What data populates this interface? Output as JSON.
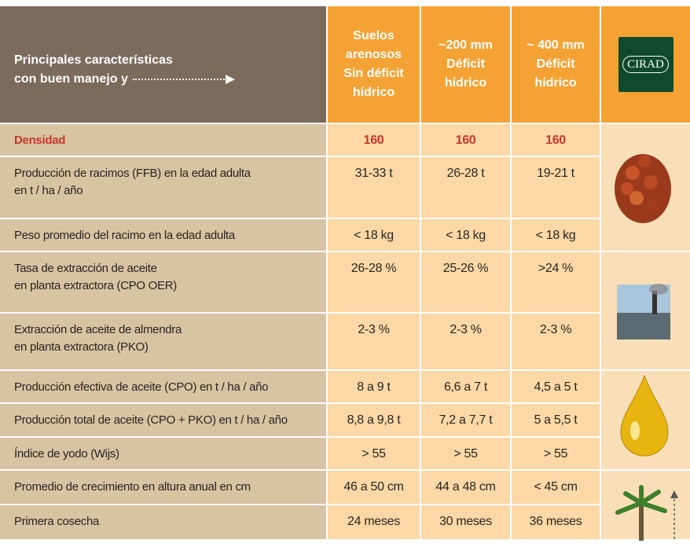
{
  "header": {
    "title_lines": [
      "Principales características",
      "con buen manejo y"
    ],
    "columns": [
      [
        "Suelos",
        "arenosos",
        "Sin déficit",
        "hídrico"
      ],
      [
        "~200 mm",
        "Déficit",
        "hídrico"
      ],
      [
        "~ 400 mm",
        "Déficit",
        "hídrico"
      ]
    ],
    "logo": "CIRAD"
  },
  "table": {
    "rows": [
      {
        "label_lines": [
          "Densidad"
        ],
        "values": [
          "160",
          "160",
          "160"
        ]
      },
      {
        "label_lines": [
          "Producción de racimos (FFB) en la edad adulta",
          "en t / ha / año"
        ],
        "values": [
          "31-33 t",
          "26-28 t",
          "19-21 t"
        ]
      },
      {
        "label_lines": [
          "Peso promedio del racimo en la edad adulta"
        ],
        "values": [
          "< 18 kg",
          "< 18 kg",
          "< 18 kg"
        ]
      },
      {
        "label_lines": [
          "Tasa de extracción de aceite",
          "en planta extractora (CPO OER)"
        ],
        "values": [
          "26-28 %",
          "25-26 %",
          ">24 %"
        ]
      },
      {
        "label_lines": [
          "Extracción de aceite de almendra",
          "en planta extractora (PKO)"
        ],
        "values": [
          "2-3 %",
          "2-3 %",
          "2-3 %"
        ]
      },
      {
        "label_lines": [
          "Producción efectiva de aceite (CPO) en t / ha / año"
        ],
        "values": [
          "8 a 9 t",
          "6,6 a 7 t",
          "4,5 a 5 t"
        ]
      },
      {
        "label_lines": [
          "Producción total de aceite (CPO + PKO) en t / ha / año"
        ],
        "values": [
          "8,8 a 9,8 t",
          "7,2 a 7,7 t",
          "5 a 5,5 t"
        ]
      },
      {
        "label_lines": [
          "Índice de yodo (Wijs)"
        ],
        "values": [
          "> 55",
          "> 55",
          "> 55"
        ]
      },
      {
        "label_lines": [
          "Promedio de crecimiento en altura anual en cm"
        ],
        "values": [
          "46 a 50 cm",
          "44 a 48 cm",
          "< 45 cm"
        ]
      },
      {
        "label_lines": [
          "Primera cosecha"
        ],
        "values": [
          "24 meses",
          "30 meses",
          "36 meses"
        ]
      }
    ]
  }
}
